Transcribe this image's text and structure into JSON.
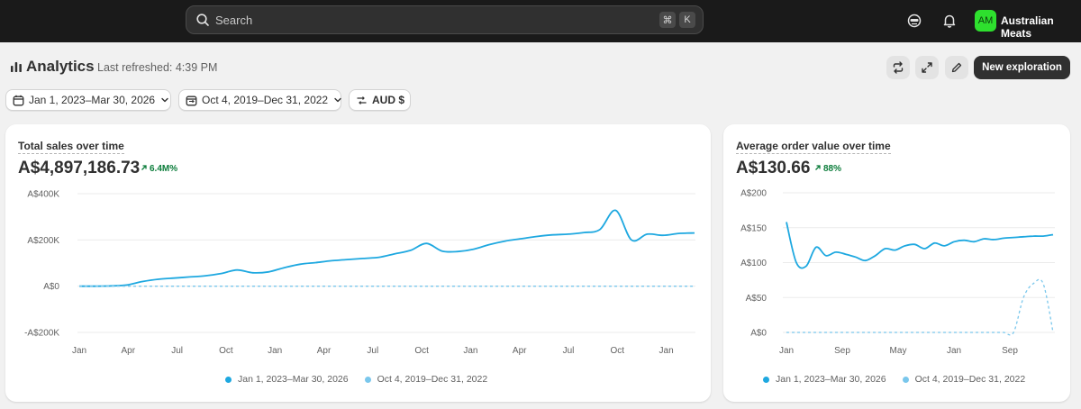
{
  "topbar": {
    "search_placeholder": "Search",
    "shortcut_keys": [
      "⌘",
      "K"
    ],
    "avatar_initials": "AM",
    "store_name": "Australian Meats"
  },
  "header": {
    "title": "Analytics",
    "last_refreshed": "Last refreshed: 4:39 PM",
    "new_exploration": "New exploration"
  },
  "filters": {
    "date_range": "Jan 1, 2023–Mar 30, 2026",
    "compare_range": "Oct 4, 2019–Dec 31, 2022",
    "currency": "AUD $"
  },
  "colors": {
    "series_primary": "#1ea8e0",
    "series_compare": "#7ac7ec",
    "positive": "#0c7d3b",
    "avatar_bg": "#2ee02e"
  },
  "cards": [
    {
      "title": "Total sales over time",
      "value": "A$4,897,186.73",
      "change": "6.4M%",
      "legend": [
        "Jan 1, 2023–Mar 30, 2026",
        "Oct 4, 2019–Dec 31, 2022"
      ],
      "chart_data": {
        "type": "line",
        "title": "Total sales over time",
        "y_ticks": [
          "A$400K",
          "A$200K",
          "A$0",
          "-A$200K"
        ],
        "x_ticks": [
          "Jan",
          "Apr",
          "Jul",
          "Oct",
          "Jan",
          "Apr",
          "Jul",
          "Oct",
          "Jan",
          "Apr",
          "Jul",
          "Oct",
          "Jan"
        ],
        "ylim": [
          -200000,
          400000
        ],
        "grid": true,
        "legend_position": "bottom",
        "series": [
          {
            "name": "Jan 1, 2023–Mar 30, 2026",
            "style": "solid",
            "values": [
              0,
              0,
              1000,
              5000,
              20000,
              30000,
              35000,
              40000,
              45000,
              55000,
              70000,
              58000,
              62000,
              80000,
              95000,
              102000,
              110000,
              115000,
              120000,
              125000,
              140000,
              155000,
              185000,
              152000,
              150000,
              160000,
              180000,
              195000,
              205000,
              215000,
              222000,
              225000,
              232000,
              245000,
              328000,
              200000,
              225000,
              220000,
              228000,
              230000
            ]
          },
          {
            "name": "Oct 4, 2019–Dec 31, 2022",
            "style": "dashed",
            "values": [
              0,
              0,
              0,
              0,
              0,
              0,
              0,
              0,
              0,
              0,
              0,
              0,
              0,
              0,
              0,
              0,
              0,
              0,
              0,
              0,
              0,
              0,
              0,
              0,
              0,
              0,
              0,
              0,
              0,
              0,
              0,
              0,
              0,
              0,
              0,
              0,
              0,
              0,
              0,
              0
            ]
          }
        ]
      }
    },
    {
      "title": "Average order value over time",
      "value": "A$130.66",
      "change": "88%",
      "legend": [
        "Jan 1, 2023–Mar 30, 2026",
        "Oct 4, 2019–Dec 31, 2022"
      ],
      "chart_data": {
        "type": "line",
        "title": "Average order value over time",
        "y_ticks": [
          "A$200",
          "A$150",
          "A$100",
          "A$50",
          "A$0"
        ],
        "x_ticks": [
          "Jan",
          "Sep",
          "May",
          "Jan",
          "Sep"
        ],
        "ylim": [
          0,
          200
        ],
        "grid": true,
        "legend_position": "bottom",
        "series": [
          {
            "name": "Jan 1, 2023–Mar 30, 2026",
            "style": "solid",
            "values": [
              158,
              100,
              95,
              122,
              110,
              115,
              112,
              108,
              103,
              110,
              120,
              118,
              124,
              126,
              120,
              128,
              124,
              130,
              132,
              130,
              134,
              133,
              135,
              136,
              137,
              138,
              138,
              140
            ]
          },
          {
            "name": "Oct 4, 2019–Dec 31, 2022",
            "style": "dashed",
            "values": [
              0,
              0,
              0,
              0,
              0,
              0,
              0,
              0,
              0,
              0,
              0,
              0,
              0,
              0,
              0,
              0,
              0,
              0,
              0,
              0,
              0,
              0,
              0,
              0,
              50,
              70,
              70,
              0
            ]
          }
        ]
      }
    }
  ]
}
